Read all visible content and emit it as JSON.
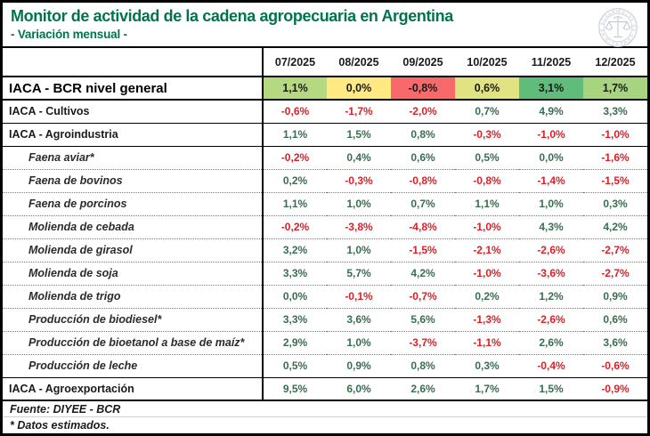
{
  "header": {
    "title": "Monitor de actividad de la cadena agropecuaria en Argentina",
    "subtitle": "- Variación mensual -",
    "logo_name": "Bolsa de Comercio de Rosario seal"
  },
  "colors": {
    "title_green": "#00754d",
    "positive_value": "#376f50",
    "negative_value": "#da2128",
    "scale_red": "#f8696b",
    "scale_yellow": "#ffe983",
    "scale_green": "#5fbc7b"
  },
  "table": {
    "columns": [
      "07/2025",
      "08/2025",
      "09/2025",
      "10/2025",
      "11/2025",
      "12/2025"
    ],
    "rows": [
      {
        "label": "IACA - BCR nivel general",
        "style": "primary",
        "values": [
          "1,1%",
          "0,0%",
          "-0,8%",
          "0,6%",
          "3,1%",
          "1,7%"
        ],
        "cell_colors": [
          "#b6d881",
          "#ffe983",
          "#f8696b",
          "#e1e383",
          "#5fbc7b",
          "#a9d47f"
        ]
      },
      {
        "label": "IACA - Cultivos",
        "style": "section",
        "values": [
          "-0,6%",
          "-1,7%",
          "-2,0%",
          "0,7%",
          "4,9%",
          "3,3%"
        ]
      },
      {
        "label": "IACA - Agroindustria",
        "style": "section",
        "values": [
          "1,1%",
          "1,5%",
          "0,8%",
          "-0,3%",
          "-1,0%",
          "-1,0%"
        ]
      },
      {
        "label": "Faena aviar*",
        "style": "sub",
        "values": [
          "-0,2%",
          "0,4%",
          "0,6%",
          "0,5%",
          "0,0%",
          "-1,6%"
        ]
      },
      {
        "label": "Faena de bovinos",
        "style": "sub",
        "values": [
          "0,2%",
          "-0,3%",
          "-0,8%",
          "-0,8%",
          "-1,4%",
          "-1,5%"
        ]
      },
      {
        "label": "Faena de porcinos",
        "style": "sub",
        "values": [
          "1,1%",
          "1,0%",
          "0,7%",
          "1,1%",
          "1,0%",
          "0,3%"
        ]
      },
      {
        "label": "Molienda de cebada",
        "style": "sub",
        "values": [
          "-0,2%",
          "-3,8%",
          "-4,8%",
          "-1,0%",
          "4,3%",
          "4,2%"
        ]
      },
      {
        "label": "Molienda de girasol",
        "style": "sub",
        "values": [
          "3,2%",
          "1,0%",
          "-1,5%",
          "-2,1%",
          "-2,6%",
          "-2,7%"
        ]
      },
      {
        "label": "Molienda de soja",
        "style": "sub",
        "values": [
          "3,3%",
          "5,7%",
          "4,2%",
          "-1,0%",
          "-3,6%",
          "-2,7%"
        ]
      },
      {
        "label": "Molienda de trigo",
        "style": "sub",
        "values": [
          "0,0%",
          "-0,1%",
          "-0,7%",
          "0,2%",
          "1,2%",
          "0,9%"
        ]
      },
      {
        "label": "Producción de biodiesel*",
        "style": "sub",
        "values": [
          "3,3%",
          "3,6%",
          "5,6%",
          "-1,3%",
          "-2,6%",
          "0,6%"
        ]
      },
      {
        "label": "Producción de bioetanol a base de maíz*",
        "style": "sub",
        "values": [
          "2,9%",
          "1,0%",
          "-3,7%",
          "-1,1%",
          "2,6%",
          "3,6%"
        ]
      },
      {
        "label": "Producción de leche",
        "style": "sub",
        "values": [
          "0,5%",
          "0,9%",
          "0,8%",
          "0,3%",
          "-0,4%",
          "-0,6%"
        ]
      },
      {
        "label": "IACA - Agroexportación",
        "style": "section-last",
        "values": [
          "9,5%",
          "6,0%",
          "2,6%",
          "1,7%",
          "1,5%",
          "-0,9%"
        ]
      }
    ]
  },
  "footer": {
    "source": "Fuente: DIYEE - BCR",
    "note": "* Datos estimados."
  },
  "chart_data": {
    "type": "table",
    "title": "Monitor de actividad de la cadena agropecuaria en Argentina",
    "subtitle": "Variación mensual (%)",
    "x": [
      "07/2025",
      "08/2025",
      "09/2025",
      "10/2025",
      "11/2025",
      "12/2025"
    ],
    "series": [
      {
        "name": "IACA - BCR nivel general",
        "values": [
          1.1,
          0.0,
          -0.8,
          0.6,
          3.1,
          1.7
        ]
      },
      {
        "name": "IACA - Cultivos",
        "values": [
          -0.6,
          -1.7,
          -2.0,
          0.7,
          4.9,
          3.3
        ]
      },
      {
        "name": "IACA - Agroindustria",
        "values": [
          1.1,
          1.5,
          0.8,
          -0.3,
          -1.0,
          -1.0
        ]
      },
      {
        "name": "Faena aviar*",
        "values": [
          -0.2,
          0.4,
          0.6,
          0.5,
          0.0,
          -1.6
        ]
      },
      {
        "name": "Faena de bovinos",
        "values": [
          0.2,
          -0.3,
          -0.8,
          -0.8,
          -1.4,
          -1.5
        ]
      },
      {
        "name": "Faena de porcinos",
        "values": [
          1.1,
          1.0,
          0.7,
          1.1,
          1.0,
          0.3
        ]
      },
      {
        "name": "Molienda de cebada",
        "values": [
          -0.2,
          -3.8,
          -4.8,
          -1.0,
          4.3,
          4.2
        ]
      },
      {
        "name": "Molienda de girasol",
        "values": [
          3.2,
          1.0,
          -1.5,
          -2.1,
          -2.6,
          -2.7
        ]
      },
      {
        "name": "Molienda de soja",
        "values": [
          3.3,
          5.7,
          4.2,
          -1.0,
          -3.6,
          -2.7
        ]
      },
      {
        "name": "Molienda de trigo",
        "values": [
          0.0,
          -0.1,
          -0.7,
          0.2,
          1.2,
          0.9
        ]
      },
      {
        "name": "Producción de biodiesel*",
        "values": [
          3.3,
          3.6,
          5.6,
          -1.3,
          -2.6,
          0.6
        ]
      },
      {
        "name": "Producción de bioetanol a base de maíz*",
        "values": [
          2.9,
          1.0,
          -3.7,
          -1.1,
          2.6,
          3.6
        ]
      },
      {
        "name": "Producción de leche",
        "values": [
          0.5,
          0.9,
          0.8,
          0.3,
          -0.4,
          -0.6
        ]
      },
      {
        "name": "IACA - Agroexportación",
        "values": [
          9.5,
          6.0,
          2.6,
          1.7,
          1.5,
          -0.9
        ]
      }
    ]
  }
}
